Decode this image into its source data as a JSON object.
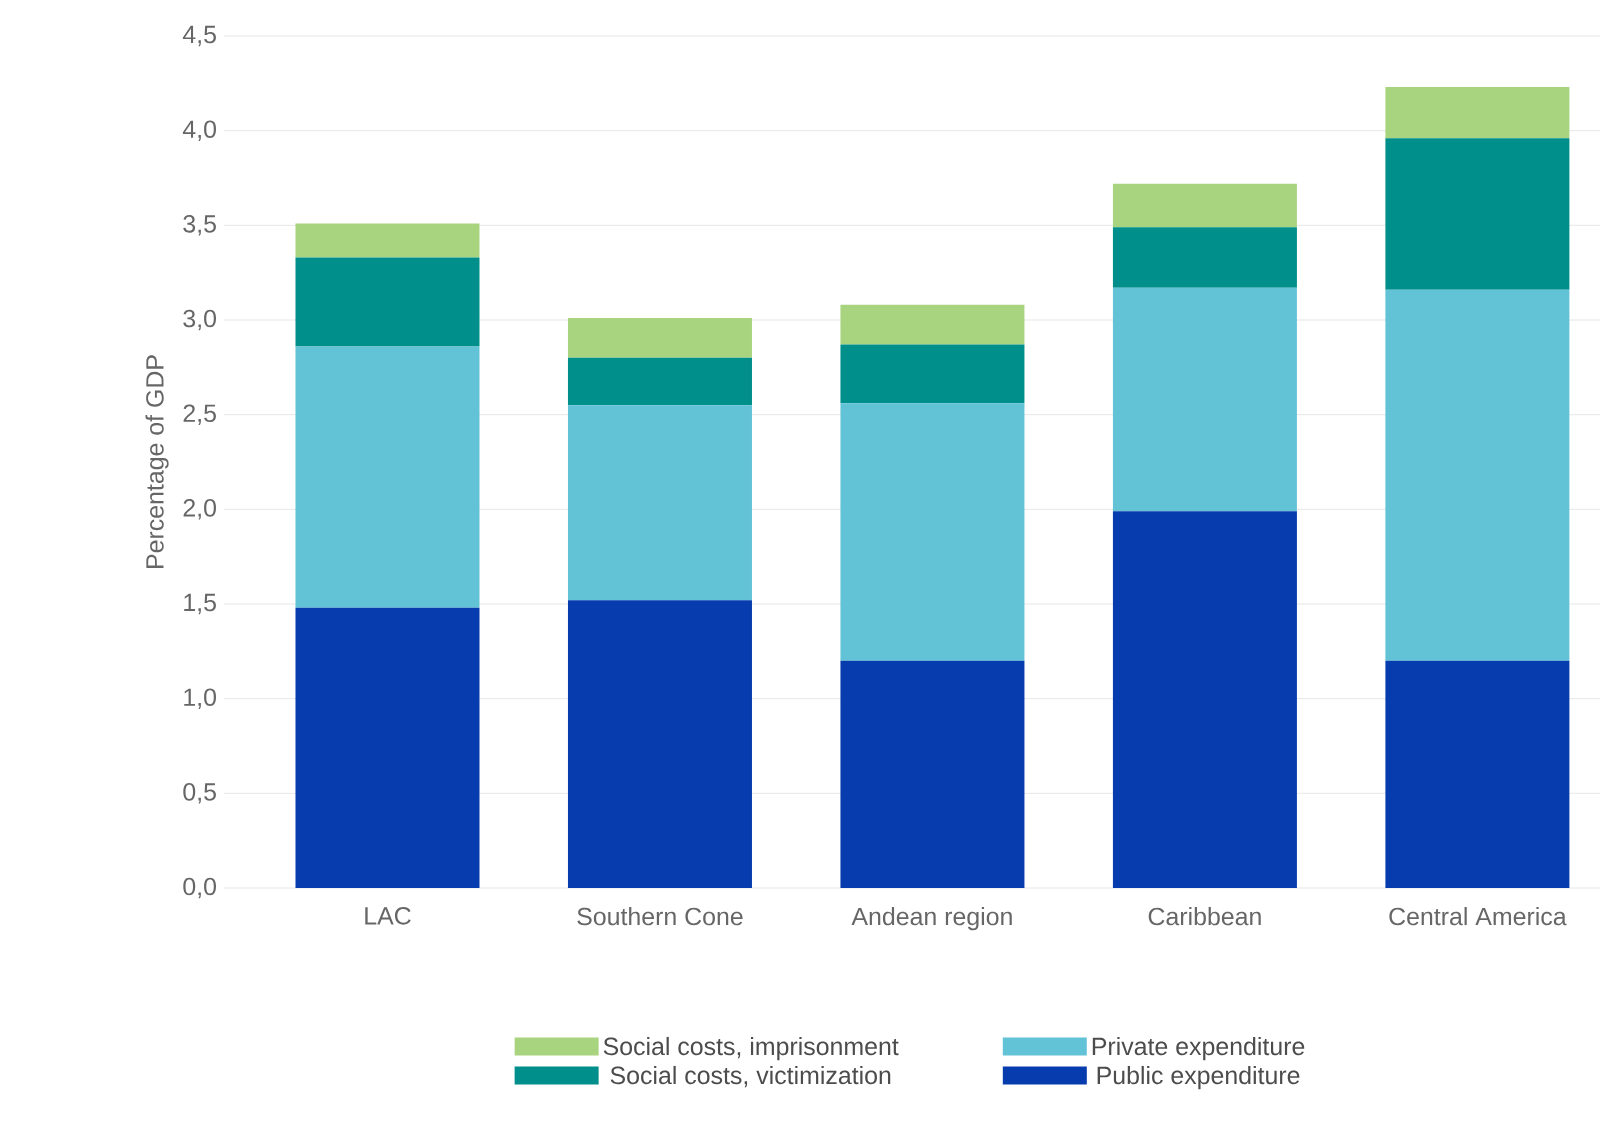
{
  "chart_data": {
    "type": "bar",
    "stacked": true,
    "ylabel": "Percentage of GDP",
    "categories": [
      "LAC",
      "Southern Cone",
      "Andean region",
      "Caribbean",
      "Central America"
    ],
    "series": [
      {
        "name": "Public expenditure",
        "color": "#063cad",
        "values": [
          1.48,
          1.52,
          1.2,
          1.99,
          1.2
        ]
      },
      {
        "name": "Private expenditure",
        "color": "#63c3d6",
        "values": [
          1.38,
          1.03,
          1.36,
          1.18,
          1.96
        ]
      },
      {
        "name": "Social costs, victimization",
        "color": "#008f8a",
        "values": [
          0.47,
          0.25,
          0.31,
          0.32,
          0.8
        ]
      },
      {
        "name": "Social costs, imprisonment",
        "color": "#a9d47f",
        "values": [
          0.18,
          0.21,
          0.21,
          0.23,
          0.27
        ]
      }
    ],
    "ylim": [
      0,
      4.5
    ],
    "yticks": [
      {
        "value": 0,
        "label": "0,0"
      },
      {
        "value": 0.5,
        "label": "0,5"
      },
      {
        "value": 1,
        "label": "1,0"
      },
      {
        "value": 1.5,
        "label": "1,5"
      },
      {
        "value": 2,
        "label": "2,0"
      },
      {
        "value": 2.5,
        "label": "2,5"
      },
      {
        "value": 3,
        "label": "3,0"
      },
      {
        "value": 3.5,
        "label": "3,5"
      },
      {
        "value": 4,
        "label": "4,0"
      },
      {
        "value": 4.5,
        "label": "4,5"
      }
    ],
    "grid": "y",
    "legend": "bottom"
  }
}
